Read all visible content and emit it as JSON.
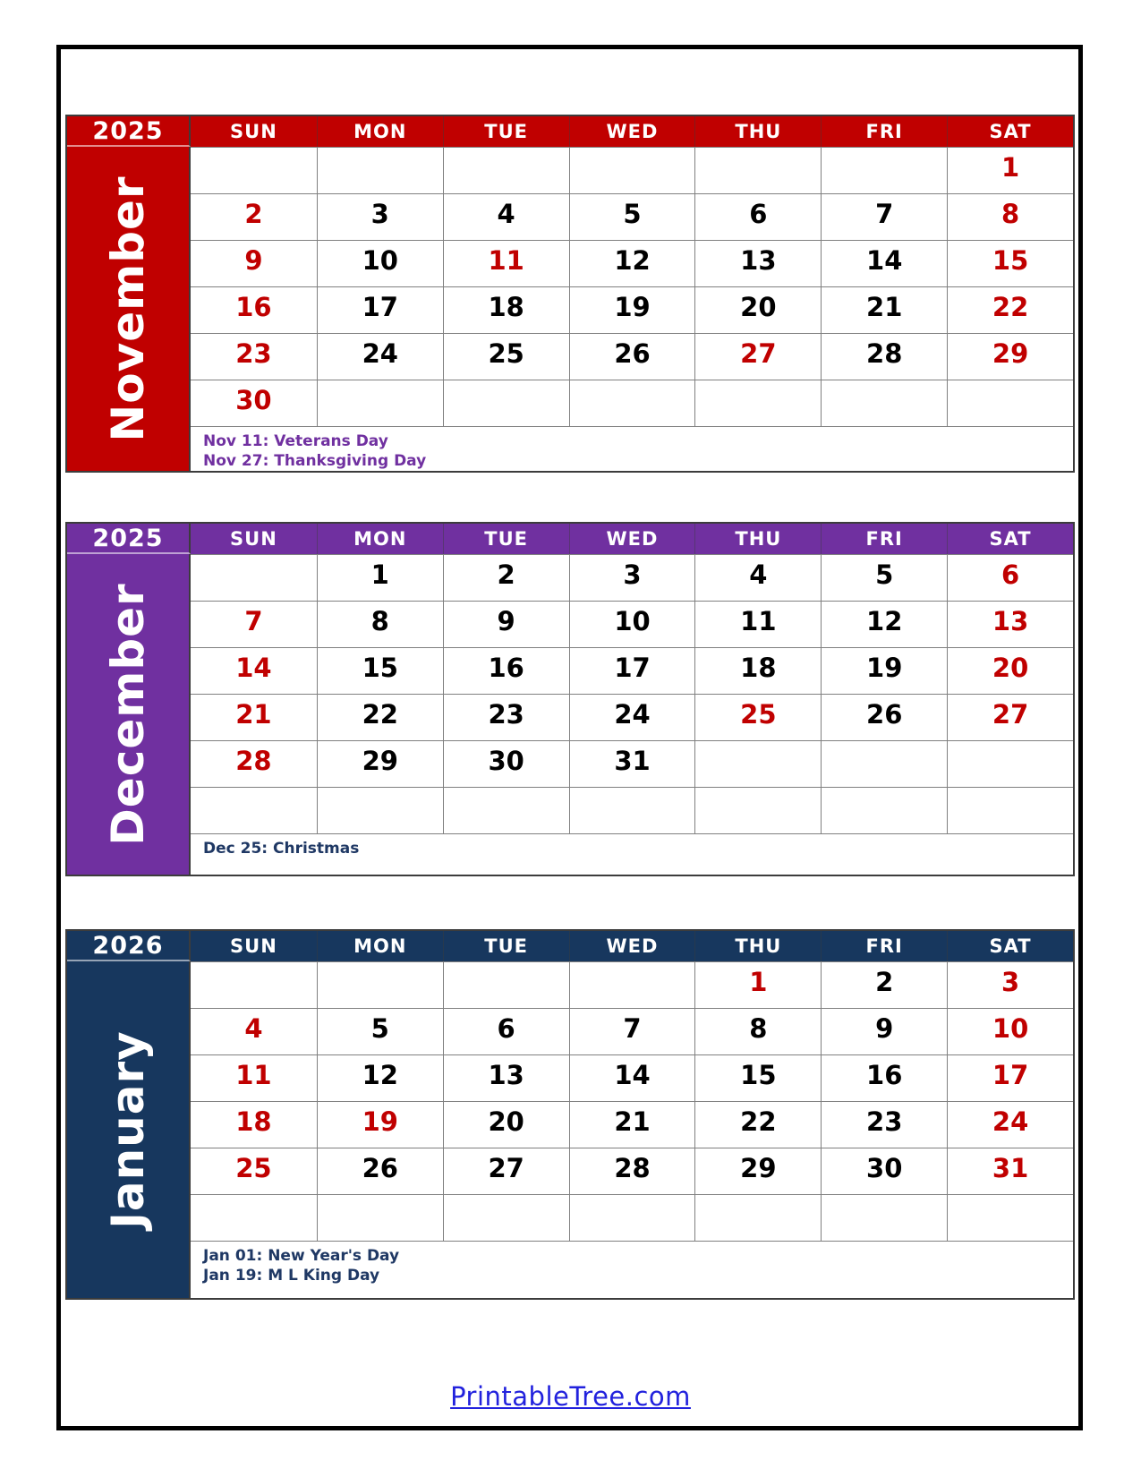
{
  "day_headers": [
    "SUN",
    "MON",
    "TUE",
    "WED",
    "THU",
    "FRI",
    "SAT"
  ],
  "date_red_color": "#C00000",
  "date_black_color": "#000000",
  "grid_line_color": "#808080",
  "months": [
    {
      "year": "2025",
      "name": "November",
      "theme_color": "#C00000",
      "holiday_text_color": "#7030A0",
      "holidays": [
        "Nov 11: Veterans Day",
        "Nov 27: Thanksgiving Day"
      ],
      "weeks": [
        [
          {
            "d": "",
            "r": false
          },
          {
            "d": "",
            "r": false
          },
          {
            "d": "",
            "r": false
          },
          {
            "d": "",
            "r": false
          },
          {
            "d": "",
            "r": false
          },
          {
            "d": "",
            "r": false
          },
          {
            "d": "1",
            "r": true
          }
        ],
        [
          {
            "d": "2",
            "r": true
          },
          {
            "d": "3",
            "r": false
          },
          {
            "d": "4",
            "r": false
          },
          {
            "d": "5",
            "r": false
          },
          {
            "d": "6",
            "r": false
          },
          {
            "d": "7",
            "r": false
          },
          {
            "d": "8",
            "r": true
          }
        ],
        [
          {
            "d": "9",
            "r": true
          },
          {
            "d": "10",
            "r": false
          },
          {
            "d": "11",
            "r": true
          },
          {
            "d": "12",
            "r": false
          },
          {
            "d": "13",
            "r": false
          },
          {
            "d": "14",
            "r": false
          },
          {
            "d": "15",
            "r": true
          }
        ],
        [
          {
            "d": "16",
            "r": true
          },
          {
            "d": "17",
            "r": false
          },
          {
            "d": "18",
            "r": false
          },
          {
            "d": "19",
            "r": false
          },
          {
            "d": "20",
            "r": false
          },
          {
            "d": "21",
            "r": false
          },
          {
            "d": "22",
            "r": true
          }
        ],
        [
          {
            "d": "23",
            "r": true
          },
          {
            "d": "24",
            "r": false
          },
          {
            "d": "25",
            "r": false
          },
          {
            "d": "26",
            "r": false
          },
          {
            "d": "27",
            "r": true
          },
          {
            "d": "28",
            "r": false
          },
          {
            "d": "29",
            "r": true
          }
        ],
        [
          {
            "d": "30",
            "r": true
          },
          {
            "d": "",
            "r": false
          },
          {
            "d": "",
            "r": false
          },
          {
            "d": "",
            "r": false
          },
          {
            "d": "",
            "r": false
          },
          {
            "d": "",
            "r": false
          },
          {
            "d": "",
            "r": false
          }
        ]
      ]
    },
    {
      "year": "2025",
      "name": "December",
      "theme_color": "#7030A0",
      "holiday_text_color": "#1F3864",
      "holidays": [
        "Dec 25: Christmas"
      ],
      "weeks": [
        [
          {
            "d": "",
            "r": false
          },
          {
            "d": "1",
            "r": false
          },
          {
            "d": "2",
            "r": false
          },
          {
            "d": "3",
            "r": false
          },
          {
            "d": "4",
            "r": false
          },
          {
            "d": "5",
            "r": false
          },
          {
            "d": "6",
            "r": true
          }
        ],
        [
          {
            "d": "7",
            "r": true
          },
          {
            "d": "8",
            "r": false
          },
          {
            "d": "9",
            "r": false
          },
          {
            "d": "10",
            "r": false
          },
          {
            "d": "11",
            "r": false
          },
          {
            "d": "12",
            "r": false
          },
          {
            "d": "13",
            "r": true
          }
        ],
        [
          {
            "d": "14",
            "r": true
          },
          {
            "d": "15",
            "r": false
          },
          {
            "d": "16",
            "r": false
          },
          {
            "d": "17",
            "r": false
          },
          {
            "d": "18",
            "r": false
          },
          {
            "d": "19",
            "r": false
          },
          {
            "d": "20",
            "r": true
          }
        ],
        [
          {
            "d": "21",
            "r": true
          },
          {
            "d": "22",
            "r": false
          },
          {
            "d": "23",
            "r": false
          },
          {
            "d": "24",
            "r": false
          },
          {
            "d": "25",
            "r": true
          },
          {
            "d": "26",
            "r": false
          },
          {
            "d": "27",
            "r": true
          }
        ],
        [
          {
            "d": "28",
            "r": true
          },
          {
            "d": "29",
            "r": false
          },
          {
            "d": "30",
            "r": false
          },
          {
            "d": "31",
            "r": false
          },
          {
            "d": "",
            "r": false
          },
          {
            "d": "",
            "r": false
          },
          {
            "d": "",
            "r": false
          }
        ],
        [
          {
            "d": "",
            "r": false
          },
          {
            "d": "",
            "r": false
          },
          {
            "d": "",
            "r": false
          },
          {
            "d": "",
            "r": false
          },
          {
            "d": "",
            "r": false
          },
          {
            "d": "",
            "r": false
          },
          {
            "d": "",
            "r": false
          }
        ]
      ]
    },
    {
      "year": "2026",
      "name": "January",
      "theme_color": "#17375E",
      "holiday_text_color": "#1F3864",
      "holidays": [
        "Jan 01: New Year's Day",
        "Jan 19: M L King Day"
      ],
      "weeks": [
        [
          {
            "d": "",
            "r": false
          },
          {
            "d": "",
            "r": false
          },
          {
            "d": "",
            "r": false
          },
          {
            "d": "",
            "r": false
          },
          {
            "d": "1",
            "r": true
          },
          {
            "d": "2",
            "r": false
          },
          {
            "d": "3",
            "r": true
          }
        ],
        [
          {
            "d": "4",
            "r": true
          },
          {
            "d": "5",
            "r": false
          },
          {
            "d": "6",
            "r": false
          },
          {
            "d": "7",
            "r": false
          },
          {
            "d": "8",
            "r": false
          },
          {
            "d": "9",
            "r": false
          },
          {
            "d": "10",
            "r": true
          }
        ],
        [
          {
            "d": "11",
            "r": true
          },
          {
            "d": "12",
            "r": false
          },
          {
            "d": "13",
            "r": false
          },
          {
            "d": "14",
            "r": false
          },
          {
            "d": "15",
            "r": false
          },
          {
            "d": "16",
            "r": false
          },
          {
            "d": "17",
            "r": true
          }
        ],
        [
          {
            "d": "18",
            "r": true
          },
          {
            "d": "19",
            "r": true
          },
          {
            "d": "20",
            "r": false
          },
          {
            "d": "21",
            "r": false
          },
          {
            "d": "22",
            "r": false
          },
          {
            "d": "23",
            "r": false
          },
          {
            "d": "24",
            "r": true
          }
        ],
        [
          {
            "d": "25",
            "r": true
          },
          {
            "d": "26",
            "r": false
          },
          {
            "d": "27",
            "r": false
          },
          {
            "d": "28",
            "r": false
          },
          {
            "d": "29",
            "r": false
          },
          {
            "d": "30",
            "r": false
          },
          {
            "d": "31",
            "r": true
          }
        ],
        [
          {
            "d": "",
            "r": false
          },
          {
            "d": "",
            "r": false
          },
          {
            "d": "",
            "r": false
          },
          {
            "d": "",
            "r": false
          },
          {
            "d": "",
            "r": false
          },
          {
            "d": "",
            "r": false
          },
          {
            "d": "",
            "r": false
          }
        ]
      ]
    }
  ],
  "footer": {
    "link_label": "PrintableTree.com",
    "link_color": "#2222DD"
  }
}
